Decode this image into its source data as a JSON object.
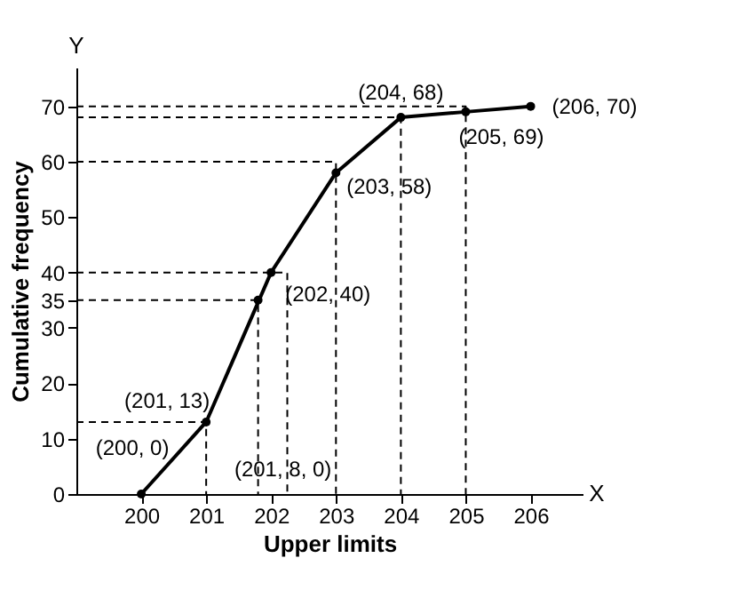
{
  "chart_data": {
    "type": "line",
    "xlabel": "Upper limits",
    "ylabel": "Cumulative frequency",
    "x": [
      200,
      201,
      202,
      203,
      204,
      205,
      206
    ],
    "series": [
      {
        "color": "#000000",
        "values": [
          0,
          13,
          40,
          58,
          68,
          69,
          70
        ],
        "marker": "circle",
        "line_style": "solid"
      },
      {
        "color": "#000000",
        "x": [
          199,
          201,
          201
        ],
        "values": [
          13,
          13,
          0
        ],
        "marker": "none",
        "line_style": "dashed"
      },
      {
        "color": "#000000",
        "x": [
          199,
          201.8,
          201.8
        ],
        "values": [
          35,
          35,
          0
        ],
        "marker": "none",
        "line_style": "dashed"
      },
      {
        "type": "scatter",
        "color": "#000000",
        "x": [
          201.8
        ],
        "values": [
          35
        ],
        "marker": "circle"
      },
      {
        "color": "#000000",
        "x": [
          199,
          202.25,
          202.25
        ],
        "values": [
          40,
          40,
          0
        ],
        "marker": "none",
        "line_style": "dashed"
      },
      {
        "color": "#000000",
        "x": [
          199,
          203,
          203
        ],
        "values": [
          60,
          60,
          0
        ],
        "marker": "none",
        "line_style": "dashed"
      },
      {
        "color": "#000000",
        "x": [
          199,
          204,
          204
        ],
        "values": [
          68,
          68,
          0
        ],
        "marker": "none",
        "line_style": "dashed"
      },
      {
        "color": "#000000",
        "x": [
          199,
          205,
          205
        ],
        "values": [
          70,
          70,
          0
        ],
        "marker": "none",
        "line_style": "dashed"
      }
    ],
    "xlim": [
      199,
      206.8
    ],
    "xticks": [
      200,
      201,
      202,
      203,
      204,
      205,
      206
    ],
    "ylim": [
      0,
      77
    ],
    "yticks": [
      0,
      10,
      20,
      30,
      35,
      40,
      50,
      60,
      70
    ],
    "grid": false,
    "annotations": [
      {
        "text": "(200, 0)",
        "x": 200,
        "y": 0
      },
      {
        "text": "(201, 13)",
        "x": 201,
        "y": 13
      },
      {
        "text": "(202, 40)",
        "x": 202,
        "y": 40
      },
      {
        "text": "(203, 58)",
        "x": 203,
        "y": 58
      },
      {
        "text": "(204, 68)",
        "x": 204,
        "y": 68
      },
      {
        "text": "(205, 69)",
        "x": 205,
        "y": 69
      },
      {
        "text": "(206, 70)",
        "x": 206,
        "y": 70
      },
      {
        "text": "(201, 8, 0)",
        "x": 201.8,
        "y": 0
      },
      "X",
      "Y"
    ]
  }
}
